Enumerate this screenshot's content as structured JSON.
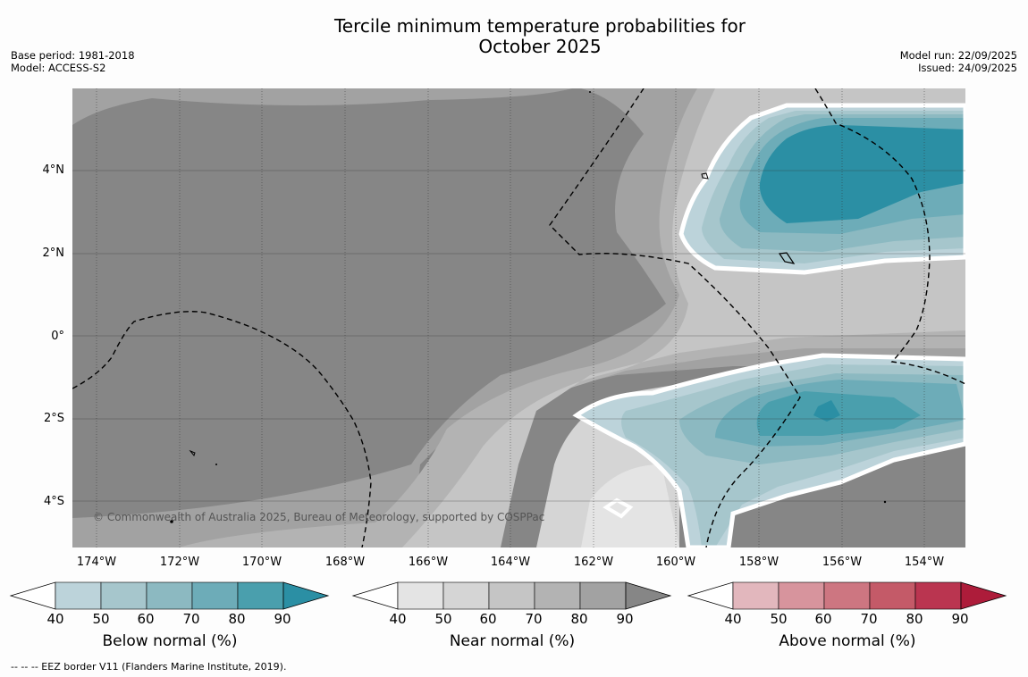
{
  "title_line1": "Tercile minimum temperature probabilities for",
  "title_line2": "October 2025",
  "base_period": "Base period: 1981-2018",
  "model": "Model: ACCESS-S2",
  "model_run": "Model run: 22/09/2025",
  "issued": "Issued: 24/09/2025",
  "lat_labels": [
    "4°N",
    "2°N",
    "0°",
    "2°S",
    "4°S"
  ],
  "lon_labels": [
    "174°W",
    "172°W",
    "170°W",
    "168°W",
    "166°W",
    "164°W",
    "162°W",
    "160°W",
    "158°W",
    "156°W",
    "154°W"
  ],
  "copyright": "© Commonwealth of Australia 2025, Bureau of Meteorology, supported by COSPPac",
  "colorbars": {
    "ticks": [
      "40",
      "50",
      "60",
      "70",
      "80",
      "90"
    ],
    "below": {
      "label": "Below normal (%)",
      "colors": [
        "#ffffff",
        "#bcd3da",
        "#a6c6cc",
        "#8cb9c1",
        "#6dacb8",
        "#4a9fad",
        "#2b8fa4"
      ]
    },
    "near": {
      "label": "Near normal (%)",
      "colors": [
        "#ffffff",
        "#e4e4e4",
        "#d5d5d5",
        "#c5c5c5",
        "#b3b3b3",
        "#a2a2a2",
        "#868686"
      ]
    },
    "above": {
      "label": "Above normal (%)",
      "colors": [
        "#ffffff",
        "#e2b7bd",
        "#d7949d",
        "#cd7681",
        "#c45a68",
        "#ba3550",
        "#ad1c3a"
      ]
    }
  },
  "footnote": "--  --  -- EEZ border V11 (Flanders Marine Institute, 2019)."
}
